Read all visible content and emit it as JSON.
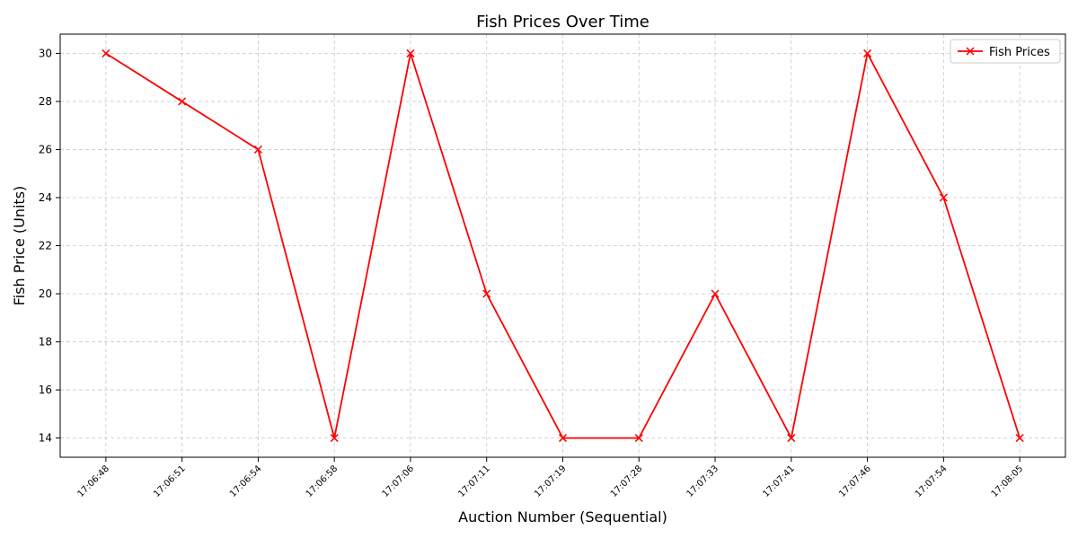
{
  "chart_data": {
    "type": "line",
    "title": "Fish Prices Over Time",
    "xlabel": "Auction Number (Sequential)",
    "ylabel": "Fish Price (Units)",
    "categories": [
      "17:06:48",
      "17:06:51",
      "17:06:54",
      "17:06:58",
      "17:07:06",
      "17:07:11",
      "17:07:19",
      "17:07:28",
      "17:07:33",
      "17:07:41",
      "17:07:46",
      "17:07:54",
      "17:08:05"
    ],
    "series": [
      {
        "name": "Fish Prices",
        "values": [
          30,
          28,
          26,
          14,
          30,
          20,
          14,
          14,
          20,
          14,
          30,
          24,
          14
        ],
        "color": "#ff0000",
        "marker": "x"
      }
    ],
    "yticks": [
      14,
      16,
      18,
      20,
      22,
      24,
      26,
      28,
      30
    ],
    "ylim": [
      13.2,
      30.8
    ],
    "grid": true,
    "legend_position": "top-right"
  }
}
